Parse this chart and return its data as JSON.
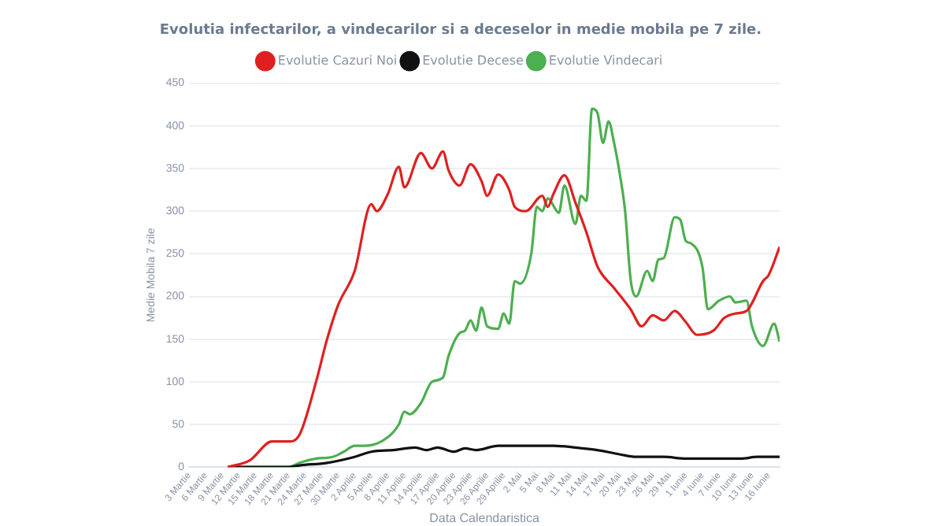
{
  "chart_data": {
    "type": "line",
    "title": "Evolutia infectarilor, a vindecarilor si a deceselor in medie mobila pe 7 zile.",
    "xlabel": "Data Calendaristica",
    "ylabel": "Medie Mobila 7 zile",
    "legend": "top",
    "grid": "y",
    "marker": "none",
    "line_style": "solid",
    "xlim": [
      "--03-03",
      "--06-18"
    ],
    "xticks": [
      {
        "value": "--03-03",
        "label": "3 Martie"
      },
      {
        "value": "--03-06",
        "label": "6 Martie"
      },
      {
        "value": "--03-09",
        "label": "9 Martie"
      },
      {
        "value": "--03-12",
        "label": "12 Martie"
      },
      {
        "value": "--03-15",
        "label": "15 Martie"
      },
      {
        "value": "--03-18",
        "label": "18 Martie"
      },
      {
        "value": "--03-21",
        "label": "21 Martie"
      },
      {
        "value": "--03-24",
        "label": "24 Martie"
      },
      {
        "value": "--03-27",
        "label": "27 Martie"
      },
      {
        "value": "--03-30",
        "label": "30 Martie"
      },
      {
        "value": "--04-02",
        "label": "2 Aprilie"
      },
      {
        "value": "--04-05",
        "label": "5 Aprilie"
      },
      {
        "value": "--04-08",
        "label": "8 Aprilie"
      },
      {
        "value": "--04-11",
        "label": "11 Aprilie"
      },
      {
        "value": "--04-14",
        "label": "14 Aprilie"
      },
      {
        "value": "--04-17",
        "label": "17 Aprilie"
      },
      {
        "value": "--04-20",
        "label": "20 Aprilie"
      },
      {
        "value": "--04-23",
        "label": "23 Aprilie"
      },
      {
        "value": "--04-26",
        "label": "26 Aprilie"
      },
      {
        "value": "--04-29",
        "label": "29 Aprilie"
      },
      {
        "value": "--05-02",
        "label": "2 Mai"
      },
      {
        "value": "--05-05",
        "label": "5 Mai"
      },
      {
        "value": "--05-08",
        "label": "8 Mai"
      },
      {
        "value": "--05-11",
        "label": "11 Mai"
      },
      {
        "value": "--05-14",
        "label": "14 Mai"
      },
      {
        "value": "--05-17",
        "label": "17 Mai"
      },
      {
        "value": "--05-20",
        "label": "20 Mai"
      },
      {
        "value": "--05-23",
        "label": "23 Mai"
      },
      {
        "value": "--05-26",
        "label": "26 Mai"
      },
      {
        "value": "--05-29",
        "label": "29 Mai"
      },
      {
        "value": "--06-01",
        "label": "1 Iunie"
      },
      {
        "value": "--06-04",
        "label": "4 Iunie"
      },
      {
        "value": "--06-07",
        "label": "7 Iunie"
      },
      {
        "value": "--06-10",
        "label": "10 Iunie"
      },
      {
        "value": "--06-13",
        "label": "13 Iunie"
      },
      {
        "value": "--06-16",
        "label": "16 Iunie"
      }
    ],
    "ylim": [
      0,
      450
    ],
    "yticks": [
      0,
      50,
      100,
      150,
      200,
      250,
      300,
      350,
      400,
      450
    ],
    "series": [
      {
        "name": "Evolutie Cazuri Noi",
        "color": "#e02020",
        "x": [
          "--03-10",
          "--03-14",
          "--03-18",
          "--03-21",
          "--03-23",
          "--03-26",
          "--03-28",
          "--03-30",
          "--04-02",
          "--04-05",
          "--04-06",
          "--04-08",
          "--04-10",
          "--04-11",
          "--04-14",
          "--04-16",
          "--04-18",
          "--04-19",
          "--04-21",
          "--04-23",
          "--04-25",
          "--04-26",
          "--04-28",
          "--04-30",
          "--05-01",
          "--05-03",
          "--05-06",
          "--05-07",
          "--05-08",
          "--05-10",
          "--05-12",
          "--05-14",
          "--05-16",
          "--05-19",
          "--05-22",
          "--05-24",
          "--05-26",
          "--05-28",
          "--05-30",
          "--06-01",
          "--06-03",
          "--06-06",
          "--06-08",
          "--06-10",
          "--06-12",
          "--06-15",
          "--06-16",
          "--06-18"
        ],
        "values": [
          0,
          8,
          30,
          30,
          38,
          100,
          150,
          190,
          230,
          308,
          300,
          320,
          352,
          328,
          368,
          350,
          370,
          348,
          330,
          355,
          335,
          318,
          343,
          325,
          305,
          300,
          318,
          305,
          320,
          342,
          310,
          275,
          235,
          210,
          185,
          165,
          178,
          172,
          183,
          170,
          155,
          160,
          175,
          180,
          183,
          218,
          225,
          258
        ]
      },
      {
        "name": "Evolutie Decese",
        "color": "#111111",
        "x": [
          "--03-10",
          "--03-21",
          "--03-23",
          "--03-28",
          "--04-02",
          "--04-05",
          "--04-09",
          "--04-13",
          "--04-15",
          "--04-17",
          "--04-20",
          "--04-22",
          "--04-24",
          "--04-28",
          "--05-02",
          "--05-08",
          "--05-12",
          "--05-16",
          "--05-20",
          "--05-23",
          "--05-28",
          "--06-01",
          "--06-06",
          "--06-11",
          "--06-14",
          "--06-18"
        ],
        "values": [
          0,
          0,
          2,
          5,
          12,
          18,
          20,
          23,
          20,
          23,
          18,
          22,
          20,
          25,
          25,
          25,
          23,
          20,
          15,
          12,
          12,
          10,
          10,
          10,
          12,
          12
        ]
      },
      {
        "name": "Evolutie Vindecari",
        "color": "#4caf50",
        "x": [
          "--03-10",
          "--03-21",
          "--03-23",
          "--03-26",
          "--03-29",
          "--03-31",
          "--04-02",
          "--04-04",
          "--04-08",
          "--04-10",
          "--04-11",
          "--04-12",
          "--04-14",
          "--04-16",
          "--04-18",
          "--04-19",
          "--04-21",
          "--04-22",
          "--04-23",
          "--04-24",
          "--04-25",
          "--04-26",
          "--04-28",
          "--04-29",
          "--04-30",
          "--05-01",
          "--05-02",
          "--05-04",
          "--05-05",
          "--05-06",
          "--05-07",
          "--05-09",
          "--05-10",
          "--05-12",
          "--05-13",
          "--05-14",
          "--05-15",
          "--05-16",
          "--05-17",
          "--05-18",
          "--05-19",
          "--05-20",
          "--05-21",
          "--05-22",
          "--05-23",
          "--05-25",
          "--05-26",
          "--05-27",
          "--05-28",
          "--05-30",
          "--05-31",
          "--06-01",
          "--06-02",
          "--06-04",
          "--06-05",
          "--06-07",
          "--06-09",
          "--06-10",
          "--06-12",
          "--06-13",
          "--06-15",
          "--06-17",
          "--06-18"
        ],
        "values": [
          0,
          0,
          5,
          10,
          12,
          18,
          25,
          25,
          35,
          50,
          65,
          62,
          75,
          100,
          105,
          130,
          157,
          160,
          172,
          160,
          187,
          165,
          162,
          180,
          168,
          218,
          215,
          250,
          305,
          300,
          315,
          298,
          330,
          285,
          318,
          312,
          420,
          415,
          380,
          405,
          380,
          345,
          300,
          220,
          200,
          230,
          218,
          243,
          245,
          293,
          290,
          265,
          262,
          235,
          185,
          195,
          200,
          193,
          195,
          165,
          142,
          168,
          147
        ]
      }
    ]
  }
}
